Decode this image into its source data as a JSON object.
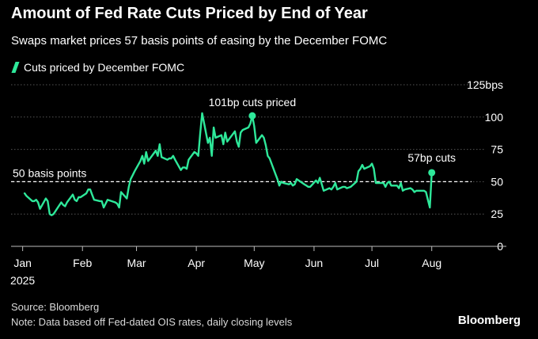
{
  "header": {
    "title": "Amount of Fed Rate Cuts Priced by End of Year",
    "subtitle": "Swaps market prices 57 basis points of easing by the December FOMC"
  },
  "legend": {
    "label": "Cuts priced by December FOMC"
  },
  "footer": {
    "source": "Source: Bloomberg",
    "note": "Note: Data based off Fed-dated OIS rates, daily closing levels",
    "brand": "Bloomberg"
  },
  "colors": {
    "line": "#2ee89a",
    "background": "#000000",
    "grid": "#555555",
    "reference": "#ffffff"
  },
  "chart_data": {
    "type": "line",
    "title": "Amount of Fed Rate Cuts Priced by End of Year",
    "subtitle": "Swaps market prices 57 basis points of easing by the December FOMC",
    "ylabel": "",
    "xlabel": "",
    "ylim": [
      0,
      125
    ],
    "xlim": [
      "2024-12-26",
      "2025-08-29"
    ],
    "yticks": [
      0,
      25,
      50,
      75,
      100,
      125
    ],
    "ytick_labels": [
      "0",
      "25",
      "50",
      "75",
      "100",
      "125bps"
    ],
    "xticks": [
      "2025-01-01",
      "2025-02-01",
      "2025-03-01",
      "2025-04-01",
      "2025-05-01",
      "2025-06-01",
      "2025-07-01",
      "2025-08-01"
    ],
    "xtick_labels": [
      "Jan",
      "Feb",
      "Mar",
      "Apr",
      "May",
      "Jun",
      "Jul",
      "Aug"
    ],
    "xtick_sublabel": "2025",
    "grid": "horizontal",
    "legend_position": "top-left",
    "reference_line": {
      "value": 50,
      "label": "50 basis points",
      "style": "dashed"
    },
    "annotations": [
      {
        "x": "2025-04-30",
        "y": 101,
        "text": "101bp cuts priced"
      },
      {
        "x": "2025-08-01",
        "y": 57,
        "text": "57bp cuts"
      }
    ],
    "series": [
      {
        "name": "Cuts priced by December FOMC",
        "points": [
          [
            "2025-01-02",
            41
          ],
          [
            "2025-01-03",
            39
          ],
          [
            "2025-01-06",
            35
          ],
          [
            "2025-01-07",
            35
          ],
          [
            "2025-01-08",
            36
          ],
          [
            "2025-01-09",
            34
          ],
          [
            "2025-01-10",
            29
          ],
          [
            "2025-01-13",
            37
          ],
          [
            "2025-01-14",
            35
          ],
          [
            "2025-01-15",
            25
          ],
          [
            "2025-01-16",
            24
          ],
          [
            "2025-01-17",
            25
          ],
          [
            "2025-01-21",
            34
          ],
          [
            "2025-01-22",
            32
          ],
          [
            "2025-01-23",
            31
          ],
          [
            "2025-01-24",
            34
          ],
          [
            "2025-01-27",
            40
          ],
          [
            "2025-01-28",
            36
          ],
          [
            "2025-01-29",
            35
          ],
          [
            "2025-01-30",
            38
          ],
          [
            "2025-01-31",
            38
          ],
          [
            "2025-02-03",
            41
          ],
          [
            "2025-02-04",
            44
          ],
          [
            "2025-02-05",
            44
          ],
          [
            "2025-02-06",
            40
          ],
          [
            "2025-02-07",
            36
          ],
          [
            "2025-02-10",
            35
          ],
          [
            "2025-02-11",
            35
          ],
          [
            "2025-02-12",
            30
          ],
          [
            "2025-02-13",
            33
          ],
          [
            "2025-02-14",
            36
          ],
          [
            "2025-02-18",
            34
          ],
          [
            "2025-02-19",
            33
          ],
          [
            "2025-02-20",
            30
          ],
          [
            "2025-02-21",
            42
          ],
          [
            "2025-02-24",
            37
          ],
          [
            "2025-02-25",
            46
          ],
          [
            "2025-02-26",
            52
          ],
          [
            "2025-02-27",
            55
          ],
          [
            "2025-02-28",
            58
          ],
          [
            "2025-03-03",
            66
          ],
          [
            "2025-03-04",
            70
          ],
          [
            "2025-03-05",
            64
          ],
          [
            "2025-03-06",
            73
          ],
          [
            "2025-03-07",
            66
          ],
          [
            "2025-03-10",
            72
          ],
          [
            "2025-03-11",
            74
          ],
          [
            "2025-03-12",
            70
          ],
          [
            "2025-03-13",
            79
          ],
          [
            "2025-03-14",
            69
          ],
          [
            "2025-03-17",
            67
          ],
          [
            "2025-03-18",
            68
          ],
          [
            "2025-03-19",
            68
          ],
          [
            "2025-03-20",
            70
          ],
          [
            "2025-03-21",
            67
          ],
          [
            "2025-03-24",
            59
          ],
          [
            "2025-03-25",
            61
          ],
          [
            "2025-03-26",
            61
          ],
          [
            "2025-03-27",
            60
          ],
          [
            "2025-03-28",
            67
          ],
          [
            "2025-03-31",
            73
          ],
          [
            "2025-04-01",
            72
          ],
          [
            "2025-04-02",
            70
          ],
          [
            "2025-04-03",
            87
          ],
          [
            "2025-04-04",
            103
          ],
          [
            "2025-04-07",
            80
          ],
          [
            "2025-04-08",
            84
          ],
          [
            "2025-04-09",
            70
          ],
          [
            "2025-04-10",
            92
          ],
          [
            "2025-04-11",
            84
          ],
          [
            "2025-04-14",
            86
          ],
          [
            "2025-04-15",
            79
          ],
          [
            "2025-04-16",
            88
          ],
          [
            "2025-04-17",
            81
          ],
          [
            "2025-04-21",
            89
          ],
          [
            "2025-04-22",
            81
          ],
          [
            "2025-04-23",
            77
          ],
          [
            "2025-04-24",
            88
          ],
          [
            "2025-04-25",
            90
          ],
          [
            "2025-04-28",
            92
          ],
          [
            "2025-04-29",
            95
          ],
          [
            "2025-04-30",
            101
          ],
          [
            "2025-05-01",
            93
          ],
          [
            "2025-05-02",
            80
          ],
          [
            "2025-05-05",
            86
          ],
          [
            "2025-05-06",
            84
          ],
          [
            "2025-05-07",
            78
          ],
          [
            "2025-05-08",
            70
          ],
          [
            "2025-05-09",
            68
          ],
          [
            "2025-05-12",
            56
          ],
          [
            "2025-05-13",
            52
          ],
          [
            "2025-05-14",
            47
          ],
          [
            "2025-05-15",
            50
          ],
          [
            "2025-05-16",
            49
          ],
          [
            "2025-05-19",
            48
          ],
          [
            "2025-05-20",
            49
          ],
          [
            "2025-05-21",
            47
          ],
          [
            "2025-05-22",
            48
          ],
          [
            "2025-05-23",
            52
          ],
          [
            "2025-05-27",
            48
          ],
          [
            "2025-05-28",
            47
          ],
          [
            "2025-05-29",
            46
          ],
          [
            "2025-05-30",
            46
          ],
          [
            "2025-06-02",
            51
          ],
          [
            "2025-06-03",
            49
          ],
          [
            "2025-06-04",
            53
          ],
          [
            "2025-06-05",
            48
          ],
          [
            "2025-06-06",
            43
          ],
          [
            "2025-06-09",
            45
          ],
          [
            "2025-06-10",
            44
          ],
          [
            "2025-06-11",
            46
          ],
          [
            "2025-06-12",
            49
          ],
          [
            "2025-06-13",
            44
          ],
          [
            "2025-06-16",
            46
          ],
          [
            "2025-06-17",
            46
          ],
          [
            "2025-06-18",
            45
          ],
          [
            "2025-06-20",
            46
          ],
          [
            "2025-06-23",
            50
          ],
          [
            "2025-06-24",
            58
          ],
          [
            "2025-06-25",
            60
          ],
          [
            "2025-06-26",
            63
          ],
          [
            "2025-06-27",
            60
          ],
          [
            "2025-06-30",
            62
          ],
          [
            "2025-07-01",
            64
          ],
          [
            "2025-07-02",
            60
          ],
          [
            "2025-07-03",
            49
          ],
          [
            "2025-07-07",
            49
          ],
          [
            "2025-07-08",
            46
          ],
          [
            "2025-07-09",
            49
          ],
          [
            "2025-07-10",
            50
          ],
          [
            "2025-07-11",
            47
          ],
          [
            "2025-07-14",
            47
          ],
          [
            "2025-07-15",
            45
          ],
          [
            "2025-07-16",
            49
          ],
          [
            "2025-07-17",
            43
          ],
          [
            "2025-07-18",
            44
          ],
          [
            "2025-07-21",
            45
          ],
          [
            "2025-07-22",
            44
          ],
          [
            "2025-07-23",
            42
          ],
          [
            "2025-07-24",
            43
          ],
          [
            "2025-07-25",
            43
          ],
          [
            "2025-07-28",
            43
          ],
          [
            "2025-07-29",
            42
          ],
          [
            "2025-07-30",
            36
          ],
          [
            "2025-07-31",
            30
          ],
          [
            "2025-08-01",
            57
          ]
        ]
      }
    ]
  }
}
